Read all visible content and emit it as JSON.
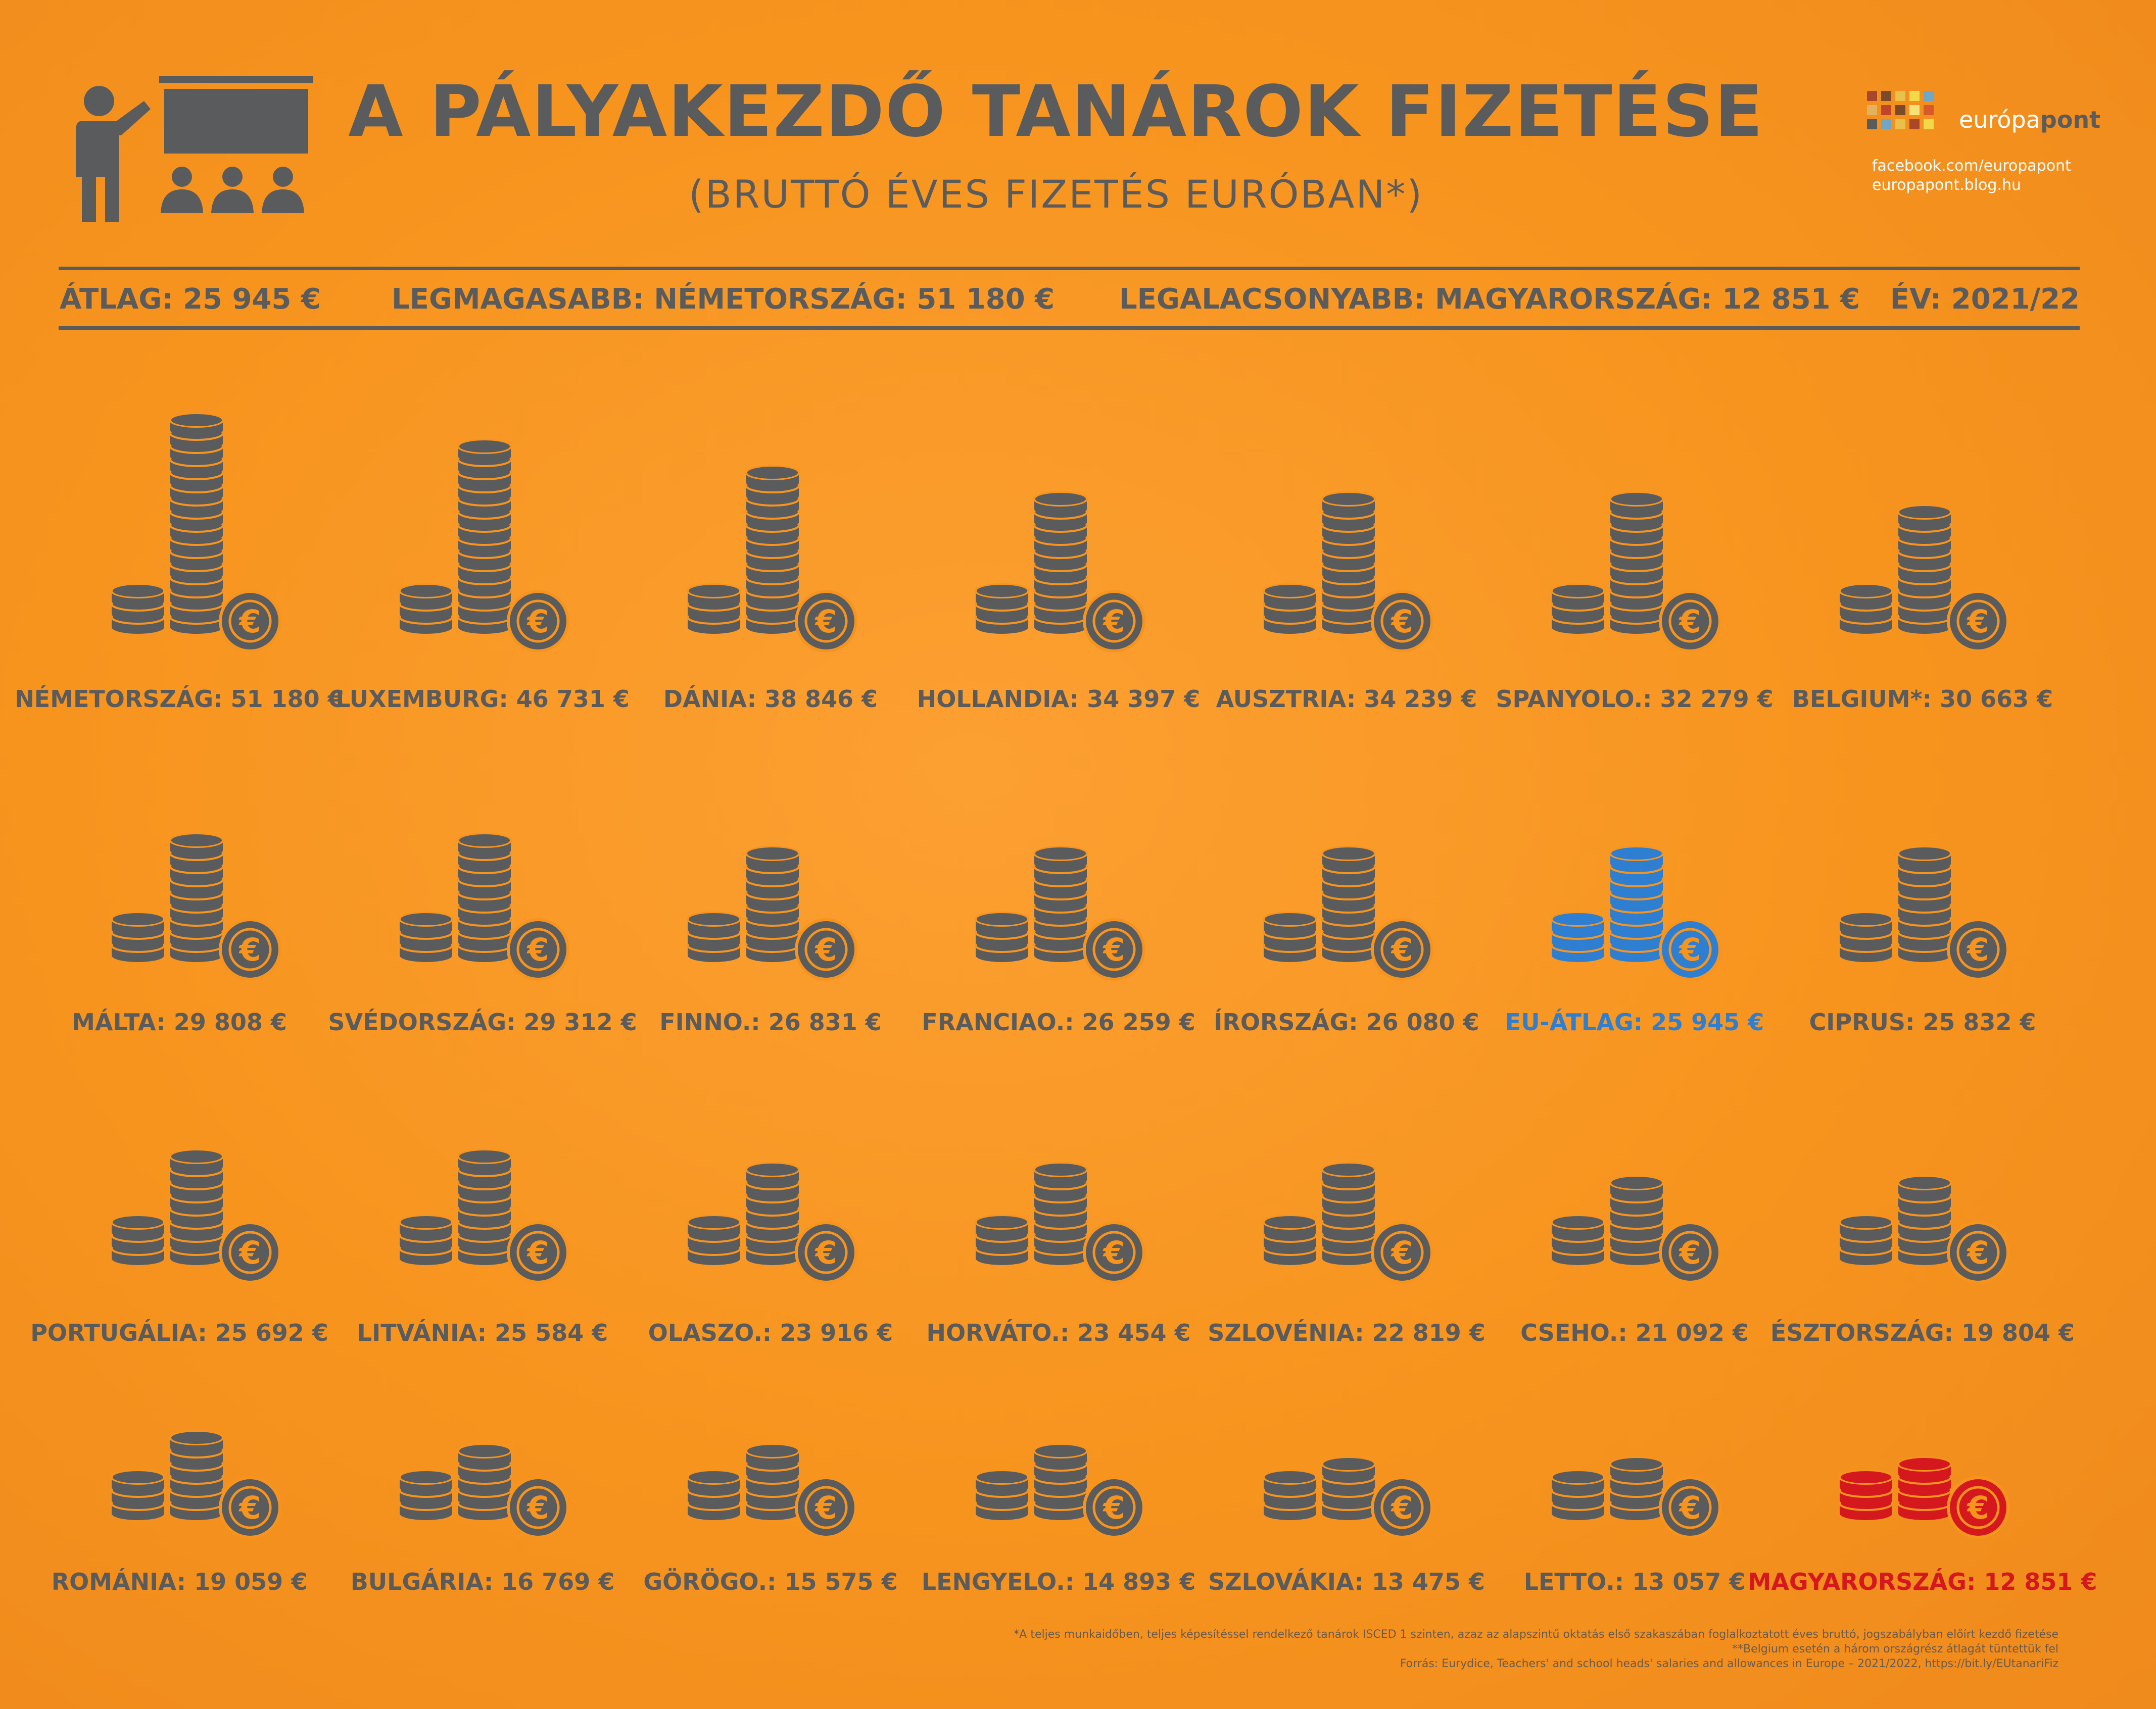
{
  "header": {
    "title": "A PÁLYAKEZDŐ TANÁROK FIZETÉSE",
    "subtitle": "(BRUTTÓ ÉVES FIZETÉS EURÓBAN*)"
  },
  "brand": {
    "name_part1": "európa",
    "name_part2": "pont",
    "facebook": "facebook.com/europapont",
    "blog": "europapont.blog.hu"
  },
  "stats": {
    "average": "ÁTLAG: 25 945 €",
    "highest": "LEGMAGASABB: NÉMETORSZÁG: 51 180 €",
    "lowest": "LEGALACSONYABB: MAGYARORSZÁG: 12 851 €",
    "year": "ÉV: 2021/22"
  },
  "footnotes": [
    "*A teljes munkaidőben, teljes képesítéssel rendelkező tanárok ISCED 1 szinten, azaz az alapszintű oktatás első szakaszában foglalkoztatott éves bruttó, jogszabályban előírt kezdő fizetése",
    "**Belgium esetén a három országrész átlagát tüntettük fel",
    "Forrás: Eurydice, Teachers' and school heads' salaries and allowances in Europe – 2021/2022, https://bit.ly/EUtanariFiz"
  ],
  "colors": {
    "background": "#f7941e",
    "coin": "#5a5b5d",
    "eu_average": "#2e7fd1",
    "hungary": "#d4181d"
  },
  "chart_data": {
    "type": "pictogram",
    "unit": "€",
    "items": [
      {
        "label": "NÉMETORSZÁG: 51 180 €",
        "value": 51180,
        "highlight": "none"
      },
      {
        "label": "LUXEMBURG: 46 731 €",
        "value": 46731,
        "highlight": "none"
      },
      {
        "label": "DÁNIA: 38 846 €",
        "value": 38846,
        "highlight": "none"
      },
      {
        "label": "HOLLANDIA: 34 397 €",
        "value": 34397,
        "highlight": "none"
      },
      {
        "label": "AUSZTRIA: 34 239 €",
        "value": 34239,
        "highlight": "none"
      },
      {
        "label": "SPANYOLO.: 32 279 €",
        "value": 32279,
        "highlight": "none"
      },
      {
        "label": "BELGIUM*: 30 663 €",
        "value": 30663,
        "highlight": "none"
      },
      {
        "label": "MÁLTA: 29 808  €",
        "value": 29808,
        "highlight": "none"
      },
      {
        "label": "SVÉDORSZÁG: 29 312 €",
        "value": 29312,
        "highlight": "none"
      },
      {
        "label": "FINNO.: 26 831 €",
        "value": 26831,
        "highlight": "none"
      },
      {
        "label": "FRANCIAO.: 26 259 €",
        "value": 26259,
        "highlight": "none"
      },
      {
        "label": "ÍRORSZÁG: 26 080 €",
        "value": 26080,
        "highlight": "none"
      },
      {
        "label": "EU-ÁTLAG: 25 945 €",
        "value": 25945,
        "highlight": "eu"
      },
      {
        "label": "CIPRUS: 25 832 €",
        "value": 25832,
        "highlight": "none"
      },
      {
        "label": "PORTUGÁLIA: 25 692 €",
        "value": 25692,
        "highlight": "none"
      },
      {
        "label": "LITVÁNIA: 25 584 €",
        "value": 25584,
        "highlight": "none"
      },
      {
        "label": "OLASZO.: 23 916 €",
        "value": 23916,
        "highlight": "none"
      },
      {
        "label": "HORVÁTO.: 23 454 €",
        "value": 23454,
        "highlight": "none"
      },
      {
        "label": "SZLOVÉNIA: 22 819 €",
        "value": 22819,
        "highlight": "none"
      },
      {
        "label": "CSEHO.: 21 092 €",
        "value": 21092,
        "highlight": "none"
      },
      {
        "label": "ÉSZTORSZÁG: 19 804 €",
        "value": 19804,
        "highlight": "none"
      },
      {
        "label": "ROMÁNIA: 19 059 €",
        "value": 19059,
        "highlight": "none"
      },
      {
        "label": "BULGÁRIA: 16 769 €",
        "value": 16769,
        "highlight": "none"
      },
      {
        "label": "GÖRÖGO.: 15 575 €",
        "value": 15575,
        "highlight": "none"
      },
      {
        "label": "LENGYELO.: 14 893 €",
        "value": 14893,
        "highlight": "none"
      },
      {
        "label": "SZLOVÁKIA: 13 475 €",
        "value": 13475,
        "highlight": "none"
      },
      {
        "label": "LETTO.: 13 057 €",
        "value": 13057,
        "highlight": "none"
      },
      {
        "label": "MAGYARORSZÁG: 12 851 €",
        "value": 12851,
        "highlight": "hungary"
      }
    ]
  }
}
